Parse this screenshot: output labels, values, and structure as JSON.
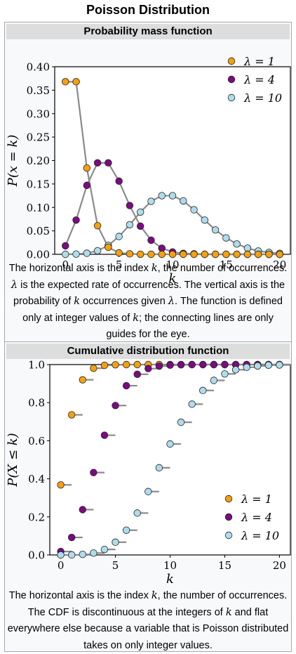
{
  "page_title": "Poisson Distribution",
  "pmf": {
    "heading": "Probability mass function",
    "caption": {
      "p1": "The horizontal axis is the index ",
      "k1": "k",
      "p2": ", the number of occurrences. ",
      "lam1": "λ",
      "p3": " is the expected rate of occurrences. The vertical axis is the probability of ",
      "k2": "k",
      "p4": " occurrences given ",
      "lam2": "λ",
      "p5": ". The function is defined only at integer values of ",
      "k3": "k",
      "p6": "; the connecting lines are only guides for the eye."
    }
  },
  "cdf": {
    "heading": "Cumulative distribution function",
    "caption": {
      "p1": "The horizontal axis is the index ",
      "k1": "k",
      "p2": ", the number of occurrences. The CDF is discontinuous at the integers of ",
      "k2": "k",
      "p3": " and flat everywhere else because a variable that is Poisson distributed takes on only integer values."
    }
  },
  "chart_data": [
    {
      "type": "line",
      "title": "Probability mass function",
      "xlabel": "k",
      "ylabel": "P(x = k)",
      "xlim": [
        -1,
        21
      ],
      "ylim": [
        0,
        0.4
      ],
      "xticks": [
        "0",
        "5",
        "10",
        "15",
        "20"
      ],
      "yticks": [
        "0.00",
        "0.05",
        "0.10",
        "0.15",
        "0.20",
        "0.25",
        "0.30",
        "0.35",
        "0.40"
      ],
      "legend_position": "top-right",
      "series": [
        {
          "name": "λ = 1",
          "color": "#f5a00d",
          "x": [
            0,
            1,
            2,
            3,
            4,
            5,
            6,
            7,
            8,
            9,
            10,
            11,
            12,
            13,
            14,
            15,
            16,
            17,
            18,
            19,
            20
          ],
          "values": [
            0.368,
            0.368,
            0.184,
            0.061,
            0.015,
            0.003,
            0.001,
            0.0001,
            0.0,
            0.0,
            0.0,
            0.0,
            0.0,
            0.0,
            0.0,
            0.0,
            0.0,
            0.0,
            0.0,
            0.0,
            0.0
          ]
        },
        {
          "name": "λ = 4",
          "color": "#7d0a83",
          "x": [
            0,
            1,
            2,
            3,
            4,
            5,
            6,
            7,
            8,
            9,
            10,
            11,
            12,
            13,
            14,
            15,
            16,
            17,
            18,
            19,
            20
          ],
          "values": [
            0.018,
            0.073,
            0.147,
            0.195,
            0.195,
            0.156,
            0.104,
            0.06,
            0.03,
            0.013,
            0.005,
            0.002,
            0.001,
            0.0,
            0.0,
            0.0,
            0.0,
            0.0,
            0.0,
            0.0,
            0.0
          ]
        },
        {
          "name": "λ = 10",
          "color": "#aedcec",
          "x": [
            0,
            1,
            2,
            3,
            4,
            5,
            6,
            7,
            8,
            9,
            10,
            11,
            12,
            13,
            14,
            15,
            16,
            17,
            18,
            19,
            20
          ],
          "values": [
            0.0,
            0.0005,
            0.0023,
            0.0076,
            0.019,
            0.038,
            0.063,
            0.09,
            0.113,
            0.125,
            0.125,
            0.114,
            0.095,
            0.073,
            0.052,
            0.035,
            0.022,
            0.013,
            0.007,
            0.004,
            0.002
          ]
        }
      ]
    },
    {
      "type": "scatter",
      "title": "Cumulative distribution function",
      "xlabel": "k",
      "ylabel": "P(X ≤ k)",
      "xlim": [
        -1,
        21
      ],
      "ylim": [
        0,
        1
      ],
      "xticks": [
        "0",
        "5",
        "10",
        "15",
        "20"
      ],
      "yticks": [
        "0.0",
        "0.2",
        "0.4",
        "0.6",
        "0.8",
        "1.0"
      ],
      "legend_position": "bottom-right",
      "step_segments": true,
      "series": [
        {
          "name": "λ = 1",
          "color": "#f5a00d",
          "x": [
            0,
            1,
            2,
            3,
            4,
            5,
            6,
            7,
            8,
            9,
            10,
            11,
            12,
            13,
            14,
            15,
            16,
            17,
            18,
            19,
            20
          ],
          "values": [
            0.368,
            0.736,
            0.92,
            0.981,
            0.996,
            0.999,
            1.0,
            1.0,
            1.0,
            1.0,
            1.0,
            1.0,
            1.0,
            1.0,
            1.0,
            1.0,
            1.0,
            1.0,
            1.0,
            1.0,
            1.0
          ]
        },
        {
          "name": "λ = 4",
          "color": "#7d0a83",
          "x": [
            0,
            1,
            2,
            3,
            4,
            5,
            6,
            7,
            8,
            9,
            10,
            11,
            12,
            13,
            14,
            15,
            16,
            17,
            18,
            19,
            20
          ],
          "values": [
            0.018,
            0.092,
            0.238,
            0.433,
            0.629,
            0.785,
            0.889,
            0.949,
            0.979,
            0.992,
            0.997,
            0.999,
            1.0,
            1.0,
            1.0,
            1.0,
            1.0,
            1.0,
            1.0,
            1.0,
            1.0
          ]
        },
        {
          "name": "λ = 10",
          "color": "#aedcec",
          "x": [
            0,
            1,
            2,
            3,
            4,
            5,
            6,
            7,
            8,
            9,
            10,
            11,
            12,
            13,
            14,
            15,
            16,
            17,
            18,
            19,
            20
          ],
          "values": [
            0.0,
            0.0005,
            0.003,
            0.01,
            0.029,
            0.067,
            0.13,
            0.22,
            0.333,
            0.458,
            0.583,
            0.697,
            0.792,
            0.864,
            0.917,
            0.951,
            0.973,
            0.986,
            0.993,
            0.997,
            0.998
          ]
        }
      ]
    }
  ]
}
